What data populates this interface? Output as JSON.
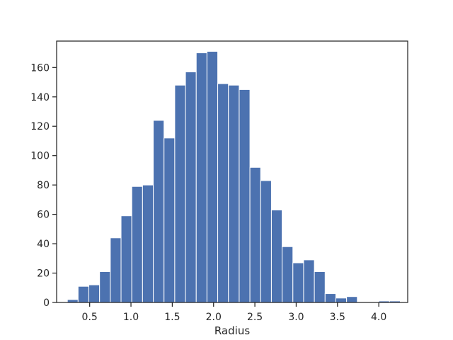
{
  "chart_data": {
    "type": "bar",
    "subtype": "histogram",
    "title": "",
    "xlabel": "Radius",
    "ylabel": "",
    "xlim": [
      0.1,
      4.35
    ],
    "ylim": [
      0,
      178
    ],
    "xticks": [
      0.5,
      1.0,
      1.5,
      2.0,
      2.5,
      3.0,
      3.5,
      4.0
    ],
    "xtick_labels": [
      "0.5",
      "1.0",
      "1.5",
      "2.0",
      "2.5",
      "3.0",
      "3.5",
      "4.0"
    ],
    "yticks": [
      0,
      20,
      40,
      60,
      80,
      100,
      120,
      140,
      160
    ],
    "ytick_labels": [
      "0",
      "20",
      "40",
      "60",
      "80",
      "100",
      "120",
      "140",
      "160"
    ],
    "grid": false,
    "bar_color": "#4c72b0",
    "bin_edges": [
      0.23,
      0.36,
      0.49,
      0.62,
      0.75,
      0.88,
      1.01,
      1.14,
      1.27,
      1.4,
      1.53,
      1.66,
      1.79,
      1.92,
      2.05,
      2.18,
      2.31,
      2.44,
      2.57,
      2.7,
      2.83,
      2.96,
      3.09,
      3.22,
      3.35,
      3.48,
      3.61,
      3.74,
      3.87,
      4.0,
      4.13,
      4.26
    ],
    "counts": [
      2,
      11,
      12,
      21,
      44,
      59,
      79,
      80,
      124,
      112,
      148,
      157,
      170,
      171,
      149,
      148,
      145,
      92,
      83,
      63,
      38,
      27,
      29,
      21,
      6,
      3,
      4,
      0,
      0,
      1,
      1
    ]
  }
}
